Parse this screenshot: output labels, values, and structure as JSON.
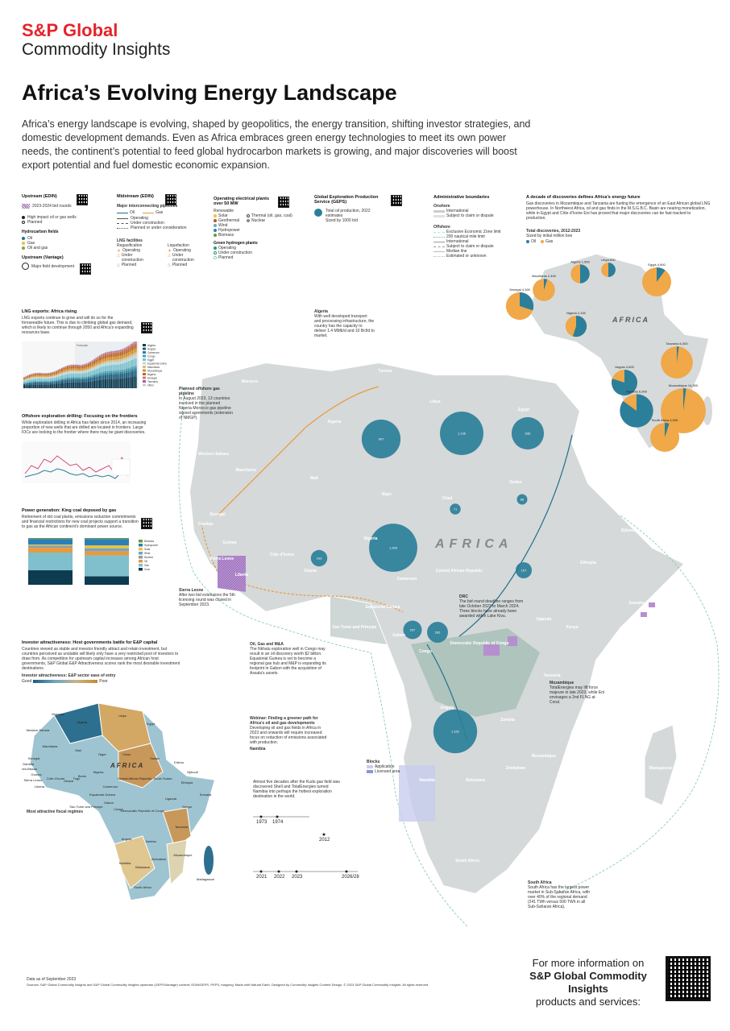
{
  "header": {
    "brand_line1": "S&P Global",
    "brand_line2": "Commodity Insights",
    "title": "Africa’s Evolving Energy Landscape",
    "intro": "Africa’s energy landscape is evolving, shaped by geopolitics, the energy transition, shifting investor strategies, and domestic development demands.  Even as Africa embraces green energy technologies to meet its own power needs, the continent’s potential to feed global hydrocarbon markets is growing, and major discoveries will boost export potential and fuel domestic economic expansion."
  },
  "legend": {
    "upstream_title": "Upstream (EDIN)",
    "upstream_items": [
      "2023-2024 bid rounds",
      "High impact oil or gas wells",
      "Planned"
    ],
    "hydrocarbon_title": "Hydrocarbon fields",
    "hydrocarbon_items": [
      "Oil",
      "Gas",
      "Oil and gas"
    ],
    "vantage_title": "Upstream (Vantage)",
    "vantage_item": "Major field development",
    "midstream_title": "Midstream (EDIN)",
    "pipelines_title": "Major interconnecting pipelines",
    "pipeline_items": [
      "Oil",
      "Gas",
      "Operating",
      "Under construction",
      "Planned or under consideration"
    ],
    "lng_title": "LNG facilities",
    "lng_cols": [
      "Regasification",
      "Liquefaction"
    ],
    "lng_items": [
      "Operating",
      "Under construction",
      "Planned"
    ],
    "power_title": "Operating electrical plants over 50 MW",
    "renewable_label": "Renewable",
    "renewable_items": [
      "Solar",
      "Geothermal",
      "Wind",
      "Hydropower",
      "Biomass"
    ],
    "thermal_items": [
      "Thermal (oil, gas, coal)",
      "Nuclear"
    ],
    "hydrogen_title": "Green hydrogen plants",
    "hydrogen_items": [
      "Operating",
      "Under construction",
      "Planned"
    ],
    "geps_title": "Global Exploration Production Service (GEPS)",
    "geps_item": "Total oil production, 2022 estimates",
    "geps_sub": "Sized by 1000 b/d",
    "admin_title": "Administrative boundaries",
    "onshore_label": "Onshore",
    "onshore_items": [
      "International",
      "Subject to claim or dispute"
    ],
    "offshore_label": "Offshore",
    "offshore_items": [
      "Exclusive Economic Zone limit",
      "200 nautical mile limit",
      "International",
      "Subject to claim or dispute",
      "Median line",
      "Estimated or unknown"
    ]
  },
  "discoveries": {
    "title": "A decade of discoveries defines Africa’s energy future",
    "body": "Gas discoveries in Mozambique and Tanzania are fueling the emergence of an East African global LNG powerhouse. In Northwest Africa, oil and gas finds in the M.S.G.B.C. Basin are nearing monetization, while in Egypt and Côte d’Ivoire Eni has proved that major discoveries can be fast-tracked to production.",
    "legend_title": "Total discoveries, 2012-2023",
    "legend_sub": "Sized by initial million boe",
    "legend_items": [
      "Oil",
      "Gas"
    ],
    "map_label": "AFRICA",
    "bubbles": [
      {
        "name": "Egypt",
        "value": "4,900",
        "oil_share": 0.1
      },
      {
        "name": "Mauritania",
        "value": "2,400",
        "oil_share": 0.05
      },
      {
        "name": "Senegal",
        "value": "4,300",
        "oil_share": 0.3
      },
      {
        "name": "Nigeria",
        "value": "2,100",
        "oil_share": 0.55
      },
      {
        "name": "Angola",
        "value": "3,600",
        "oil_share": 0.8
      },
      {
        "name": "Namibia",
        "value": "6,900",
        "oil_share": 0.85
      },
      {
        "name": "Mozambique",
        "value": "14,300",
        "oil_share": 0.02
      },
      {
        "name": "Tanzania",
        "value": "6,300",
        "oil_share": 0.02
      },
      {
        "name": "South Africa",
        "value": "4,900",
        "oil_share": 0.05
      },
      {
        "name": "Algeria",
        "value": "1,500",
        "oil_share": 0.5
      },
      {
        "name": "Libya",
        "value": "600",
        "oil_share": 0.5
      }
    ]
  },
  "lng_chart": {
    "title": "LNG exports: Africa rising",
    "body": "LNG exports continue to grow and will do so for the foreseeable future. This is due to climbing global gas demand, which is likely to continue through 2050 and Africa’s expanding resources base.",
    "forecast_label": "Forecast",
    "legend": [
      "Algeria",
      "Angola",
      "Cameroon",
      "Congo",
      "Egypt",
      "Equatorial Guinea",
      "Mauritania",
      "Mozambique",
      "Nigeria",
      "Senegal",
      "Tanzania",
      "Other"
    ]
  },
  "offshore": {
    "title": "Offshore exploration drilling: Focusing on the frontiers",
    "body": "While exploration drilling in Africa has fallen since 2014, an increasing proportion of new wells that are drilled are located in frontiers. Large IOCs are looking to the frontier where there may be giant discoveries."
  },
  "power": {
    "title": "Power generation: King coal deposed by gas",
    "body": "Retirement of old coal plants, emissions reduction commitments and financial restrictions for new coal projects support a transition to gas as the African continent’s dominant power source.",
    "legend": [
      "Biomass",
      "Hydropower",
      "Solar",
      "Wind",
      "Nuclear",
      "Oil",
      "Gas",
      "Coal"
    ]
  },
  "investor": {
    "title": "Investor attractiveness: Host governments battle for E&P capital",
    "body": "Countries viewed as stable and investor friendly attract and retain investment, but countries perceived as unstable will likely only have a very restricted pool of investors to draw from. As competition for upstream capital increases among African host governments, S&P Global E&P Attractiveness scores rank the most desirable investment destinations.",
    "subtitle": "Investor attractiveness: E&P sector ease of entry",
    "scale_low": "Good",
    "scale_high": "Poor",
    "map_label": "AFRICA",
    "regimes_title": "Most attractive fiscal regimes",
    "countries": [
      "Morocco",
      "Algeria",
      "Libya",
      "Egypt",
      "Mauritania",
      "Mali",
      "Niger",
      "Chad",
      "Sudan",
      "Senegal",
      "Gambia",
      "Guinea-Bissau",
      "Guinea",
      "Sierra Leone",
      "Liberia",
      "Côte d’Ivoire",
      "Ghana",
      "Togo",
      "Benin",
      "Nigeria",
      "Cameroon",
      "Central African Republic",
      "South Sudan",
      "Ethiopia",
      "Somalia",
      "Kenya",
      "Uganda",
      "Equatorial Guinea",
      "Gabon",
      "Congo",
      "Democratic Republic of Congo",
      "Tanzania",
      "Angola",
      "Zambia",
      "Mozambique",
      "Namibia",
      "Botswana",
      "Zimbabwe",
      "South Africa",
      "Madagascar",
      "Sao Tome and Principe",
      "Western Sahara",
      "Eritrea",
      "Djibouti"
    ]
  },
  "callouts": {
    "algeria_title": "Algeria",
    "algeria_body": "With well developed transport and processing infrastructure, the country has the capacity to deliver 1.4 MMb/d and 10 Bcf/d to market.",
    "offshore_pipeline_title": "Planned offshore gas pipeline",
    "offshore_pipeline_body": "In August 2023, 13 countries involved in the planned Nigeria-Morocco gas pipeline signed agreements (extension of NMGP).",
    "sierra_title": "Sierra Leone",
    "sierra_body": "After two bid extensions the 5th licensing round was closed in September 2023.",
    "drc_title": "DRC",
    "drc_body": "The bid round deadline ranges from late October 2023 to March 2024. Three blocks have already been awarded within Lake Kivu.",
    "congo_title": "Oil, Gas and M&A",
    "congo_body": "The Nkhalu exploration well in Congo may result in an oil discovery worth $2 billion. Equatorial Guinea is set to become a regional gas hub and M&P is expanding its footprint in Gabon with the acquisition of Assala’s assets.",
    "webinar_title": "Webinar: Finding a greener path for Africa’s oil and gas developments",
    "webinar_body": "Developing oil and gas fields in Africa in 2023 and onwards will require increased focus on reduction of emissions associated with production.",
    "namibia_title": "Namibia",
    "namibia_body": "Almost five decades after the Kudu gas field was discovered Shell and TotalEnergies turned Namibia into perhaps the hottest exploration destination in the world.",
    "timeline_years": [
      "1973",
      "1974",
      "2012",
      "2021",
      "2022",
      "2023",
      "2026/28"
    ],
    "mozambique_title": "Mozambique",
    "mozambique_body": "TotalEnergies may lift force majeure in late 2023, while Eni envisages a 2nd FLNG at Coral.",
    "south_africa_title": "South Africa",
    "south_africa_body": "South Africa has the largest power market in Sub-Saharan Africa, with over 40% of the regional demand (241 TWh versus 590 TWh in all Sub-Saharan Africa).",
    "blocks_label": "Blocks",
    "blocks_items": [
      "Application",
      "Licensed area"
    ]
  },
  "map": {
    "main_label": "AFRICA",
    "country_labels": [
      "Morocco",
      "Algeria",
      "Libya",
      "Egypt",
      "Tunisia",
      "Western Sahara",
      "Mauritania",
      "Mali",
      "Niger",
      "Chad",
      "Sudan",
      "Senegal",
      "Gambia",
      "Guinea",
      "Sierra Leone",
      "Liberia",
      "Côte d’Ivoire",
      "Ghana",
      "Nigeria",
      "Cameroon",
      "Central African Republic",
      "Democratic Republic of Congo",
      "Angola",
      "Namibia",
      "South Africa",
      "Mozambique",
      "Tanzania",
      "Kenya",
      "Ethiopia",
      "Somalia",
      "Djibouti",
      "Madagascar",
      "Sao Tomé and Principe",
      "Equatorial Guinea",
      "Gabon",
      "Congo",
      "Zambia",
      "Botswana",
      "Zimbabwe",
      "Uganda"
    ],
    "production_bubbles": [
      {
        "country": "Algeria",
        "value": "907"
      },
      {
        "country": "Libya",
        "value": "1,136"
      },
      {
        "country": "Egypt",
        "value": "630"
      },
      {
        "country": "Nigeria",
        "value": "1,399"
      },
      {
        "country": "Angola",
        "value": "1,152"
      },
      {
        "country": "Congo",
        "value": "262"
      },
      {
        "country": "Gabon",
        "value": "207"
      },
      {
        "country": "Chad",
        "value": "71"
      },
      {
        "country": "Sudan",
        "value": "66"
      },
      {
        "country": "South Sudan",
        "value": "157"
      },
      {
        "country": "Ghana",
        "value": "163"
      }
    ]
  },
  "footer": {
    "cta_line1": "For more information on",
    "cta_line2": "S&P Global Commodity Insights",
    "cta_line3": "products and services:",
    "date_note": "Data as of September 2023",
    "sources": "Sources: S&P Global Commodity Insights and S&P Global Commodity Insights upstream (GEPS/Vantage) content; EDIN/GEPS, PEPS; mapping: Made with Natural Earth. Designed by Commodity Insights Content Design. © 2023 S&P Global Commodity Insights. All rights reserved."
  }
}
